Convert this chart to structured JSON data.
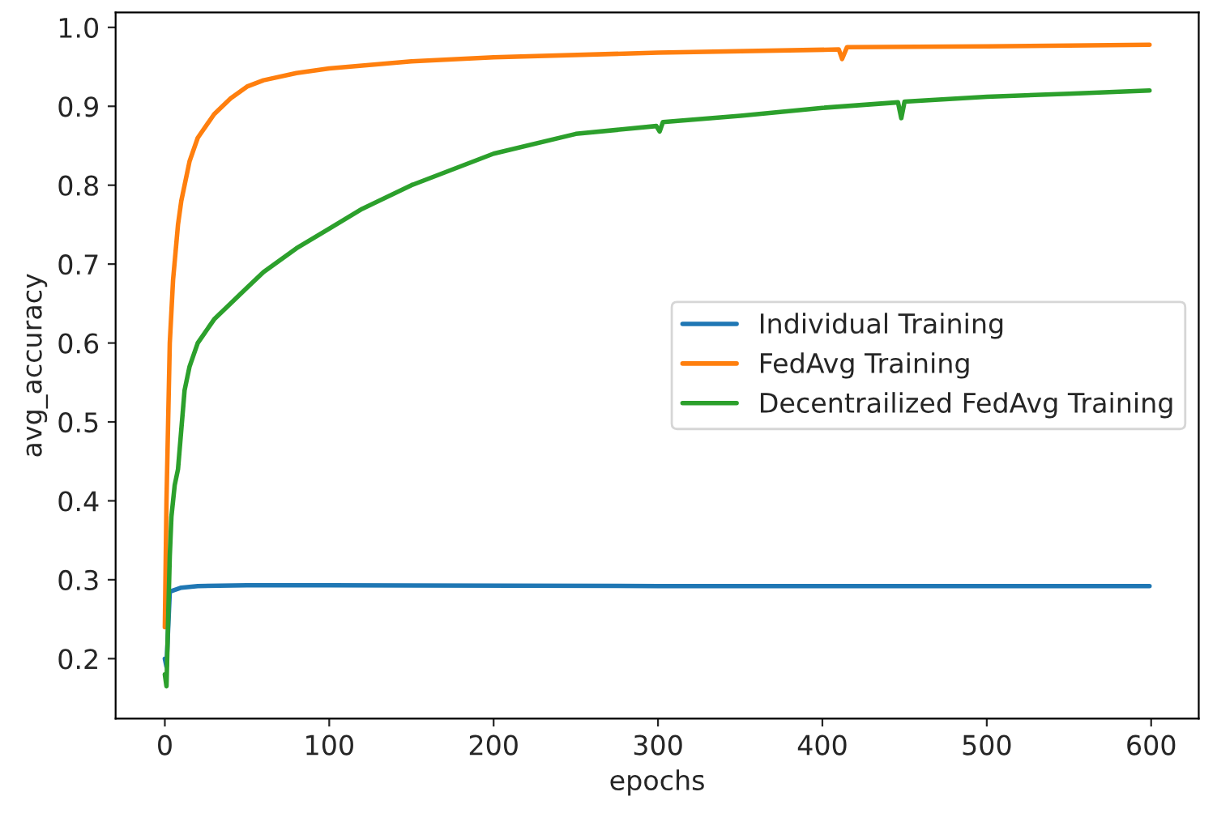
{
  "chart_data": {
    "type": "line",
    "xlabel": "epochs",
    "ylabel": "avg_accuracy",
    "xlim": [
      -29.95,
      628.95
    ],
    "xticks": [
      0,
      100,
      200,
      300,
      400,
      500,
      600
    ],
    "ylim": [
      0.124,
      1.019
    ],
    "yticks": [
      {
        "value": 0.2,
        "label": "0.2"
      },
      {
        "value": 0.3,
        "label": "0.3"
      },
      {
        "value": 0.4,
        "label": "0.4"
      },
      {
        "value": 0.5,
        "label": "0.5"
      },
      {
        "value": 0.6,
        "label": "0.6"
      },
      {
        "value": 0.7,
        "label": "0.7"
      },
      {
        "value": 0.8,
        "label": "0.8"
      },
      {
        "value": 0.9,
        "label": "0.9"
      },
      {
        "value": 1.0,
        "label": "1.0"
      }
    ],
    "grid": false,
    "legend": "center right",
    "marker": "none",
    "line_style": "solid",
    "series": [
      {
        "name": "Individual Training",
        "color": "#1f77b4",
        "x": [
          0,
          1,
          3,
          10,
          20,
          50,
          100,
          300,
          599
        ],
        "values": [
          0.2,
          0.19,
          0.285,
          0.29,
          0.292,
          0.293,
          0.293,
          0.292,
          0.292
        ]
      },
      {
        "name": "FedAvg Training",
        "color": "#ff7f0e",
        "x": [
          0,
          1,
          2,
          3,
          5,
          8,
          10,
          15,
          20,
          30,
          40,
          50,
          60,
          80,
          100,
          150,
          200,
          300,
          410,
          412,
          415,
          500,
          599
        ],
        "values": [
          0.24,
          0.4,
          0.5,
          0.6,
          0.68,
          0.75,
          0.78,
          0.83,
          0.86,
          0.89,
          0.91,
          0.925,
          0.933,
          0.942,
          0.948,
          0.957,
          0.962,
          0.968,
          0.972,
          0.96,
          0.975,
          0.976,
          0.978
        ]
      },
      {
        "name": "Decentrailized FedAvg Training",
        "color": "#2ca02c",
        "x": [
          0,
          1,
          2,
          3,
          4,
          6,
          8,
          10,
          12,
          15,
          20,
          30,
          40,
          50,
          60,
          80,
          100,
          120,
          150,
          200,
          250,
          299,
          301,
          303,
          350,
          400,
          446,
          448,
          450,
          500,
          550,
          599
        ],
        "values": [
          0.18,
          0.165,
          0.25,
          0.33,
          0.38,
          0.42,
          0.44,
          0.49,
          0.54,
          0.57,
          0.6,
          0.63,
          0.65,
          0.67,
          0.69,
          0.72,
          0.745,
          0.77,
          0.8,
          0.84,
          0.865,
          0.875,
          0.868,
          0.88,
          0.888,
          0.898,
          0.905,
          0.885,
          0.906,
          0.912,
          0.916,
          0.92
        ]
      }
    ]
  }
}
